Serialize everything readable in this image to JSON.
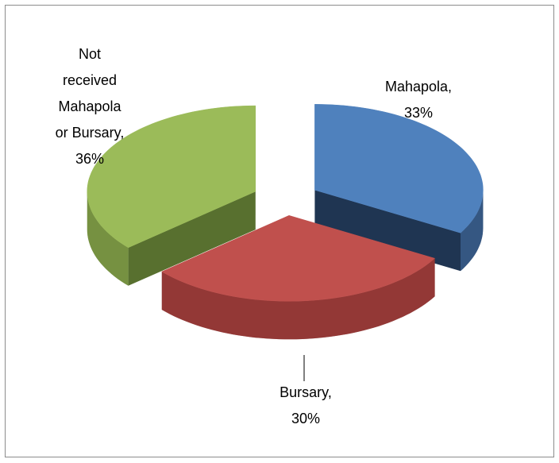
{
  "chart_data": {
    "type": "pie3d",
    "values": [
      33,
      30,
      36
    ],
    "value_labels": [
      "Mahapola, 33%",
      "Bursary, 30%",
      "Not received Mahapola or Bursary, 36%"
    ],
    "colors": [
      "#4f81bd",
      "#c0504d",
      "#9bbb59"
    ],
    "side_colors": [
      "#1f3552",
      "#6e2624",
      "#58702f"
    ]
  }
}
